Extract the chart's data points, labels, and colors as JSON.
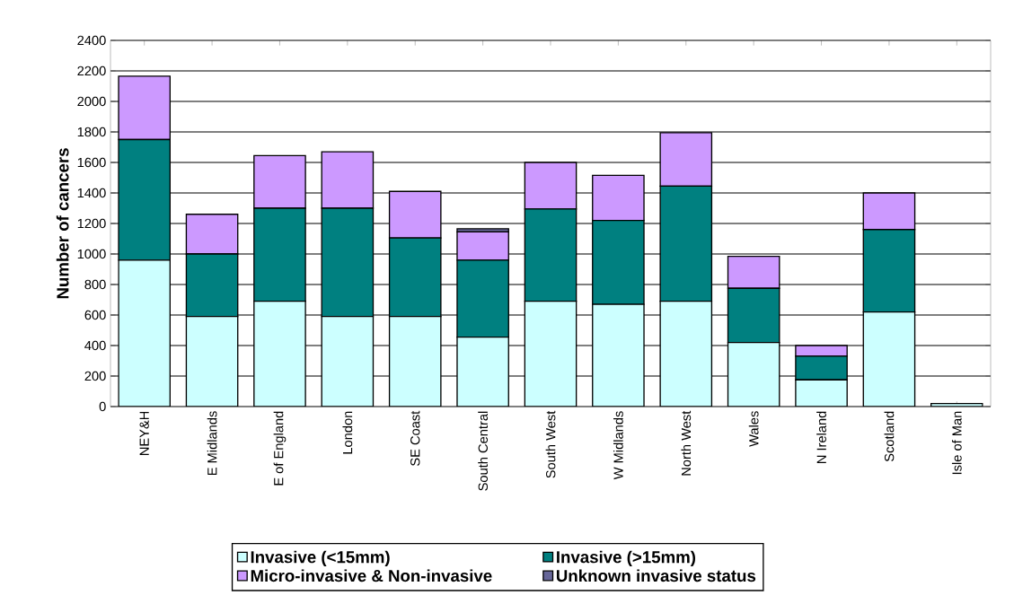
{
  "chart_data": {
    "type": "bar",
    "stacked": true,
    "ylabel": "Number of cancers",
    "categories": [
      "NEY&H",
      "E Midlands",
      "E of England",
      "London",
      "SE Coast",
      "South Central",
      "South West",
      "W Midlands",
      "North West",
      "Wales",
      "N Ireland",
      "Scotland",
      "Isle of Man"
    ],
    "series": [
      {
        "name": "Invasive (<15mm)",
        "color": "#ccffff",
        "values": [
          960,
          590,
          690,
          590,
          590,
          455,
          690,
          670,
          690,
          420,
          175,
          620,
          20
        ]
      },
      {
        "name": "Invasive (>15mm)",
        "color": "#008080",
        "values": [
          790,
          410,
          610,
          710,
          515,
          505,
          605,
          550,
          755,
          355,
          155,
          540,
          0
        ]
      },
      {
        "name": "Micro-invasive & Non-invasive",
        "color": "#cc99ff",
        "values": [
          415,
          260,
          345,
          370,
          305,
          185,
          305,
          295,
          350,
          210,
          70,
          240,
          0
        ]
      },
      {
        "name": "Unknown invasive status",
        "color": "#666699",
        "values": [
          0,
          0,
          0,
          0,
          0,
          20,
          0,
          0,
          0,
          null,
          0,
          0,
          0
        ]
      }
    ],
    "ylim": [
      0,
      2400
    ],
    "yticks": [
      0,
      200,
      400,
      600,
      800,
      1000,
      1200,
      1400,
      1600,
      1800,
      2000,
      2200,
      2400
    ],
    "grid": "y",
    "legend": "bottom"
  }
}
